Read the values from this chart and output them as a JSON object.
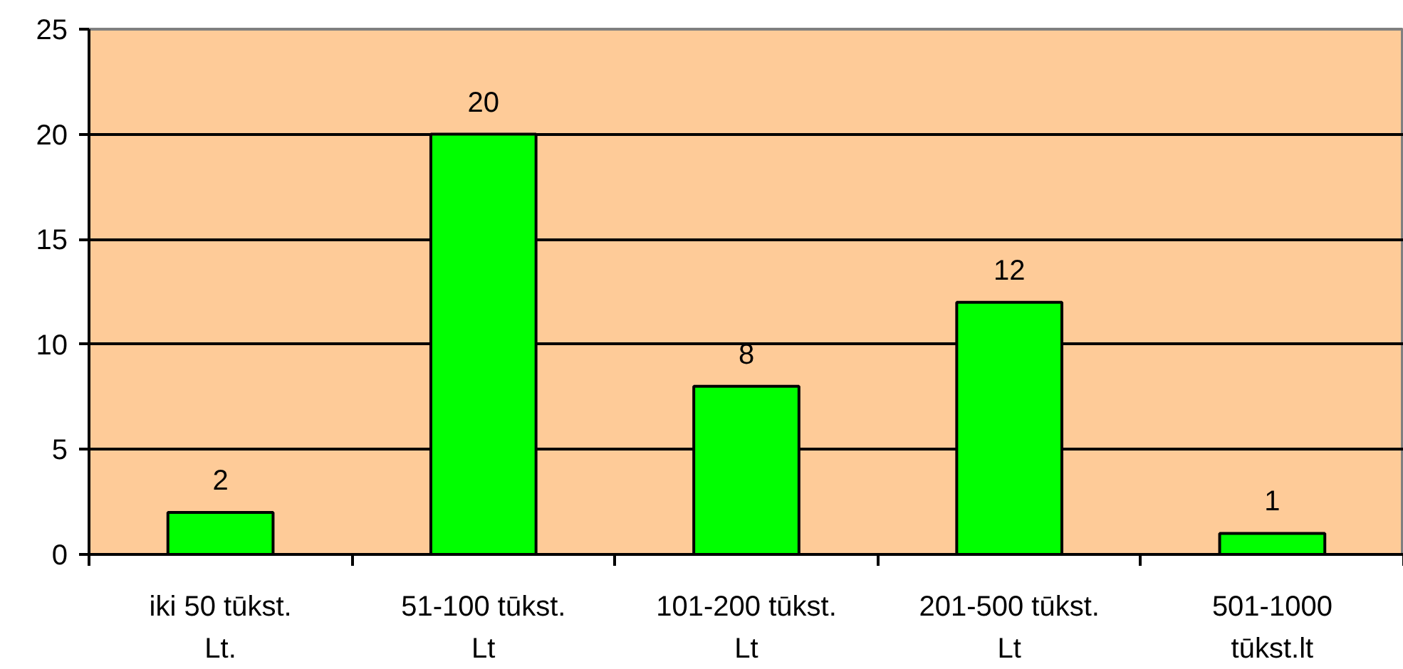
{
  "chart_data": {
    "type": "bar",
    "categories": [
      "iki 50 tūkst. Lt.",
      "51-100 tūkst. Lt",
      "101-200 tūkst. Lt",
      "201-500 tūkst. Lt",
      "501-1000 tūkst.lt"
    ],
    "values": [
      2,
      20,
      8,
      12,
      1
    ],
    "color": "#00ff00",
    "ylim": [
      0,
      25
    ],
    "yticks": [
      0,
      5,
      10,
      15,
      20,
      25
    ],
    "grid": "y",
    "data_labels": true
  }
}
